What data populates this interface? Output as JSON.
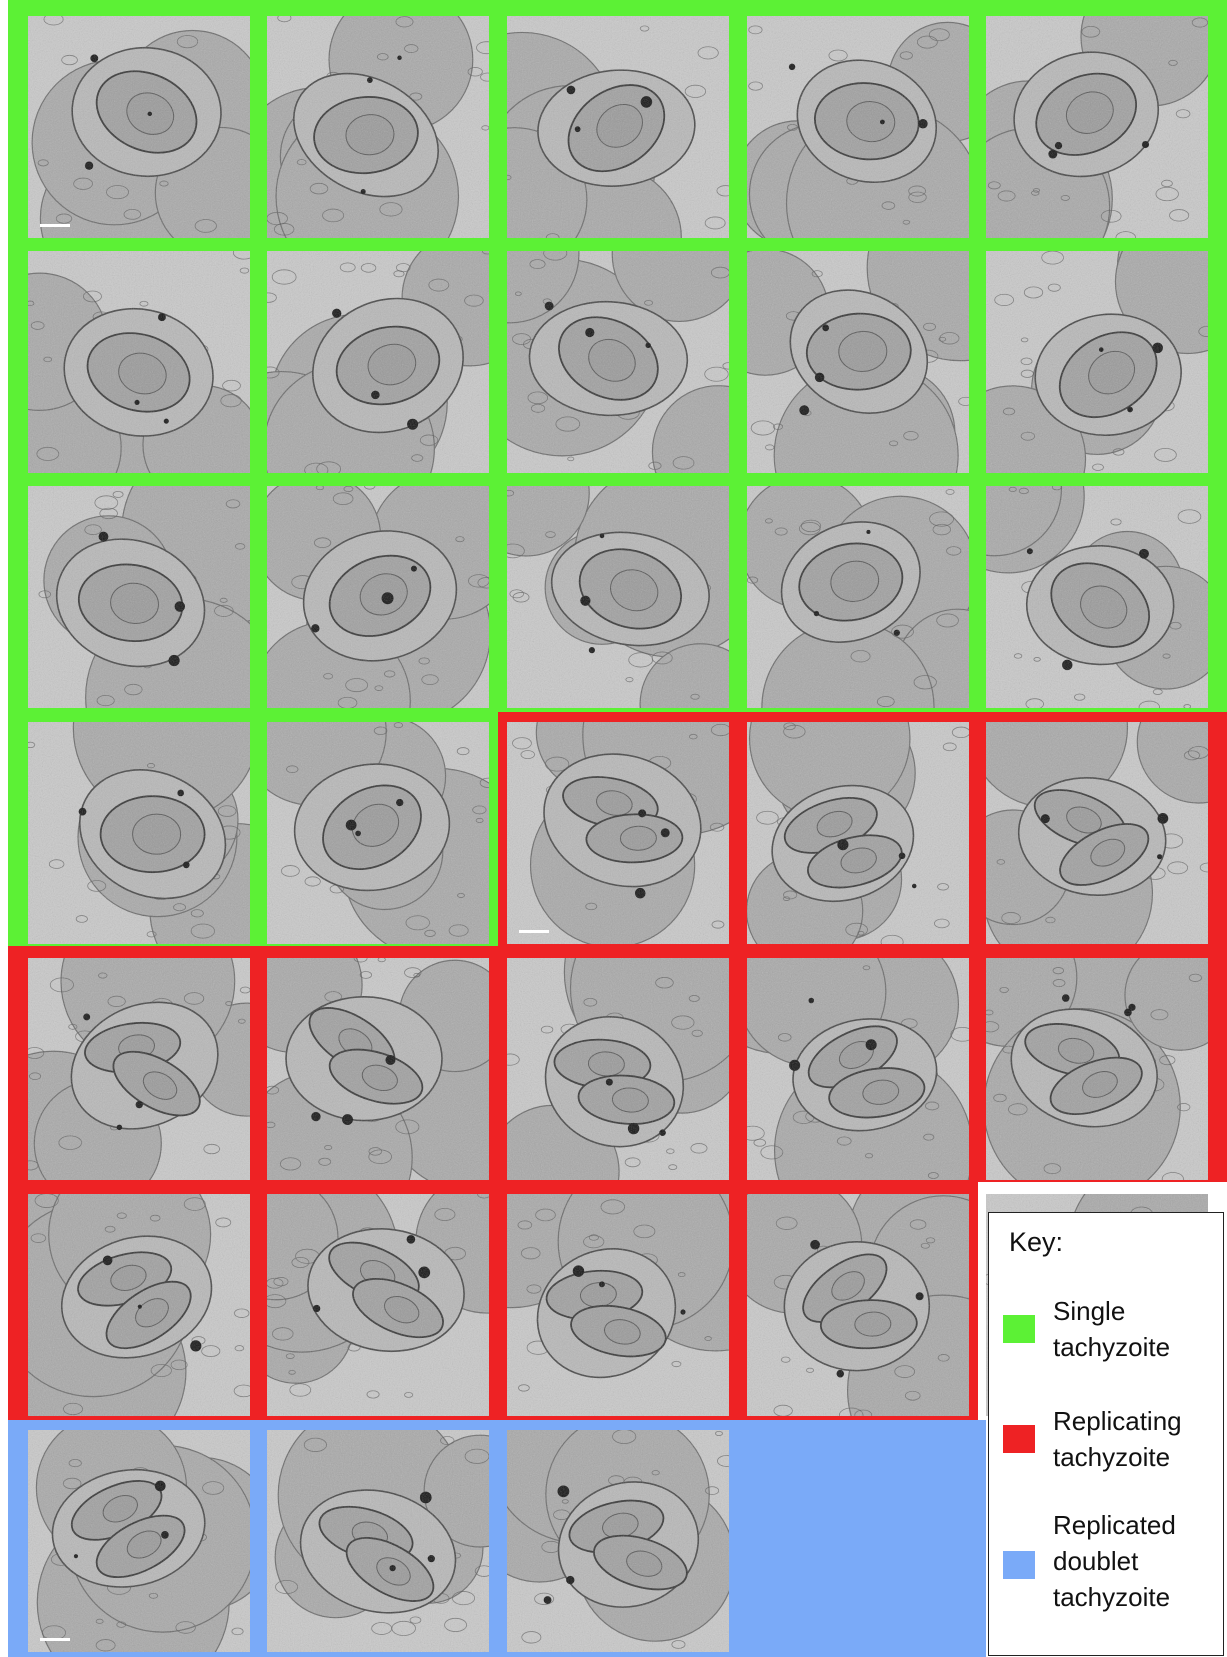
{
  "key": {
    "title": "Key:",
    "categories": [
      {
        "id": "single",
        "label": "Single\ntachyzoite",
        "color": "#5cf135",
        "count": 17
      },
      {
        "id": "replicating",
        "label": "Replicating\ntachyzoite",
        "color": "#ee2224",
        "count": 12
      },
      {
        "id": "doublet",
        "label": "Replicated\ndoublet\ntachyzoite",
        "color": "#7aaaf8",
        "count": 4
      }
    ]
  },
  "grid": {
    "columns": 5,
    "rows": 7,
    "panels": [
      "single",
      "single",
      "single",
      "single",
      "single",
      "single",
      "single",
      "single",
      "single",
      "single",
      "single",
      "single",
      "single",
      "single",
      "single",
      "single",
      "single",
      "replicating",
      "replicating",
      "replicating",
      "replicating",
      "replicating",
      "replicating",
      "replicating",
      "replicating",
      "replicating",
      "replicating",
      "replicating",
      "replicating",
      "doublet",
      "doublet",
      "doublet",
      "doublet"
    ]
  }
}
